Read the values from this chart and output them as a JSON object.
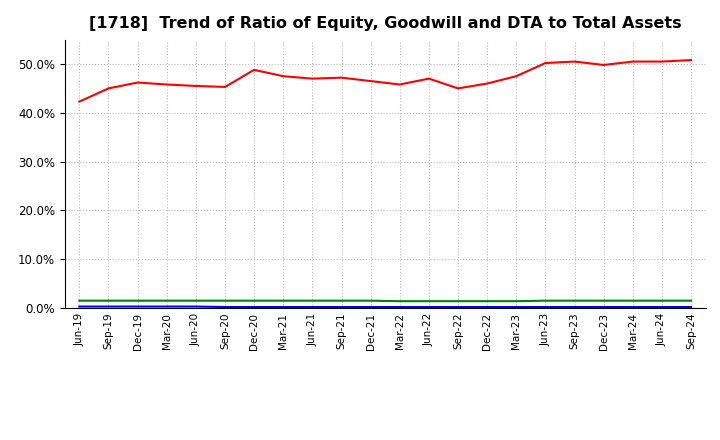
{
  "title": "[1718]  Trend of Ratio of Equity, Goodwill and DTA to Total Assets",
  "x_labels": [
    "Jun-19",
    "Sep-19",
    "Dec-19",
    "Mar-20",
    "Jun-20",
    "Sep-20",
    "Dec-20",
    "Mar-21",
    "Jun-21",
    "Sep-21",
    "Dec-21",
    "Mar-22",
    "Jun-22",
    "Sep-22",
    "Dec-22",
    "Mar-23",
    "Jun-23",
    "Sep-23",
    "Dec-23",
    "Mar-24",
    "Jun-24",
    "Sep-24"
  ],
  "equity": [
    42.3,
    45.0,
    46.2,
    45.8,
    45.5,
    45.3,
    48.8,
    47.5,
    47.0,
    47.2,
    46.5,
    45.8,
    47.0,
    45.0,
    46.0,
    47.5,
    50.2,
    50.5,
    49.8,
    50.5,
    50.5,
    50.8
  ],
  "goodwill": [
    0.3,
    0.3,
    0.3,
    0.3,
    0.3,
    0.2,
    0.2,
    0.2,
    0.2,
    0.2,
    0.2,
    0.2,
    0.2,
    0.2,
    0.2,
    0.2,
    0.2,
    0.2,
    0.2,
    0.2,
    0.2,
    0.2
  ],
  "dta": [
    1.5,
    1.5,
    1.5,
    1.5,
    1.5,
    1.5,
    1.5,
    1.5,
    1.5,
    1.5,
    1.5,
    1.4,
    1.4,
    1.4,
    1.4,
    1.4,
    1.5,
    1.5,
    1.5,
    1.5,
    1.5,
    1.5
  ],
  "equity_color": "#FF0000",
  "goodwill_color": "#0000FF",
  "dta_color": "#008000",
  "ylim": [
    0,
    55
  ],
  "yticks": [
    0.0,
    10.0,
    20.0,
    30.0,
    40.0,
    50.0
  ],
  "background_color": "#FFFFFF",
  "plot_bg_color": "#FFFFFF",
  "grid_color": "#BBBBBB",
  "title_fontsize": 11.5
}
